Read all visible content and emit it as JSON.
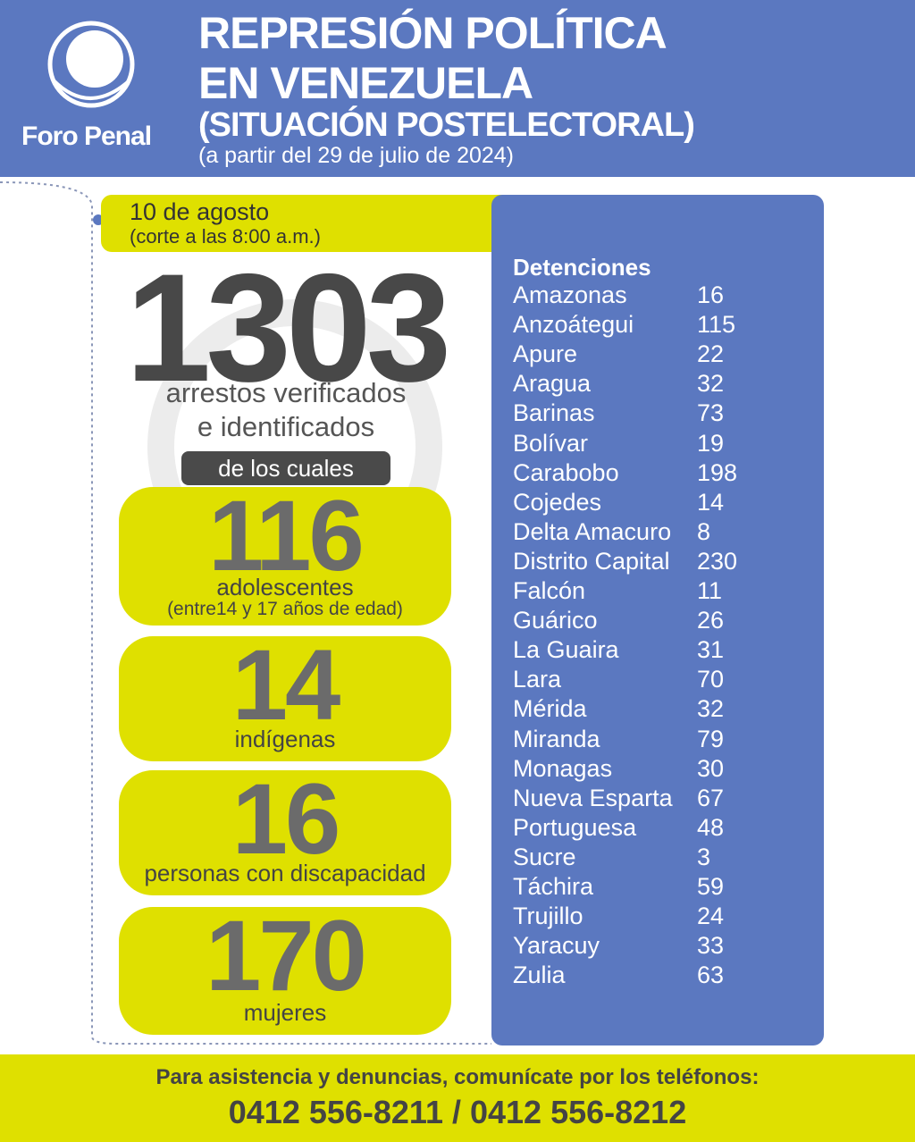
{
  "header": {
    "logo_text": "Foro Penal",
    "title_lines": [
      "REPRESIÓN POLÍTICA",
      "EN VENEZUELA",
      "(SITUACIÓN POSTELECTORAL)"
    ],
    "subtitle": "(a partir del 29 de julio de 2024)"
  },
  "date": {
    "day": "10 de agosto",
    "cutoff": "(corte a las 8:00 a.m.)"
  },
  "total": {
    "value": 1303,
    "label_lines": [
      "arrestos verificados",
      "e identificados"
    ]
  },
  "of_which": "de los cuales",
  "groups": [
    {
      "value": 116,
      "label": "adolescentes",
      "note": "(entre14 y 17 años de edad)"
    },
    {
      "value": 14,
      "label": "indígenas"
    },
    {
      "value": 16,
      "label": "personas con discapacidad"
    },
    {
      "value": 170,
      "label": "mujeres"
    }
  ],
  "detentions": {
    "heading": "Detenciones",
    "rows": [
      [
        "Amazonas",
        16
      ],
      [
        "Anzoátegui",
        115
      ],
      [
        "Apure",
        22
      ],
      [
        "Aragua",
        32
      ],
      [
        "Barinas",
        73
      ],
      [
        "Bolívar",
        19
      ],
      [
        "Carabobo",
        198
      ],
      [
        "Cojedes",
        14
      ],
      [
        "Delta Amacuro",
        8
      ],
      [
        "Distrito Capital",
        230
      ],
      [
        "Falcón",
        11
      ],
      [
        "Guárico",
        26
      ],
      [
        "La Guaira",
        31
      ],
      [
        "Lara",
        70
      ],
      [
        "Mérida",
        32
      ],
      [
        "Miranda",
        79
      ],
      [
        "Monagas",
        30
      ],
      [
        "Nueva Esparta",
        67
      ],
      [
        "Portuguesa",
        48
      ],
      [
        "Sucre",
        3
      ],
      [
        "Táchira",
        59
      ],
      [
        "Trujillo",
        24
      ],
      [
        "Yaracuy",
        33
      ],
      [
        "Zulia",
        63
      ]
    ]
  },
  "footer": {
    "text": "Para asistencia y denuncias, comunícate por los teléfonos:",
    "phones": "0412 556-8211 / 0412 556-8212"
  }
}
